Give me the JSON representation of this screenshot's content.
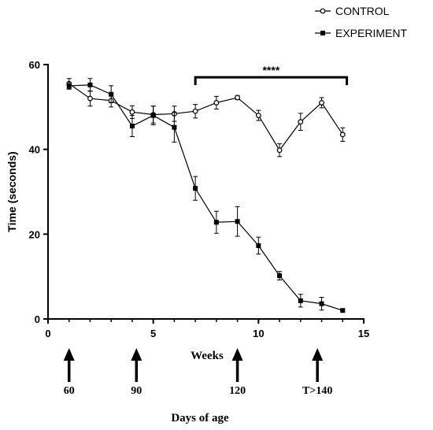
{
  "chart_data": {
    "type": "line",
    "xlabel": "Weeks",
    "ylabel": "Time (seconds)",
    "xlim": [
      0,
      15
    ],
    "ylim": [
      0,
      60
    ],
    "x_ticks": [
      0,
      5,
      10,
      15
    ],
    "y_ticks": [
      0,
      20,
      40,
      60
    ],
    "grid": false,
    "legend_position": "top-right",
    "series": [
      {
        "name": "CONTROL",
        "marker": "open-circle",
        "color": "#000000",
        "x": [
          1,
          2,
          3,
          4,
          5,
          6,
          7,
          8,
          9,
          10,
          11,
          12,
          13,
          14
        ],
        "y": [
          55.5,
          52.0,
          51.5,
          48.8,
          48.2,
          48.4,
          49.0,
          51.0,
          52.2,
          48.0,
          39.8,
          46.5,
          51.0,
          43.5
        ],
        "err": [
          1.2,
          1.8,
          1.5,
          1.5,
          2.0,
          1.8,
          1.6,
          1.5,
          0.5,
          1.2,
          1.5,
          2.0,
          1.2,
          1.6
        ]
      },
      {
        "name": "EXPERIMENT",
        "marker": "filled-square",
        "color": "#000000",
        "x": [
          1,
          2,
          3,
          4,
          5,
          6,
          7,
          8,
          9,
          10,
          11,
          12,
          13,
          14
        ],
        "y": [
          55.0,
          55.2,
          53.0,
          45.5,
          48.0,
          45.2,
          30.8,
          22.8,
          23.0,
          17.3,
          10.2,
          4.3,
          3.6,
          2.0
        ],
        "err": [
          0.8,
          1.5,
          2.0,
          2.5,
          2.2,
          3.5,
          2.8,
          2.6,
          3.5,
          2.0,
          1.0,
          1.5,
          1.5,
          0.3
        ]
      }
    ],
    "significance": {
      "label": "****",
      "x_start": 7,
      "x_end": 14.2,
      "y": 57
    },
    "age_markers": {
      "title": "Days of age",
      "items": [
        {
          "label": "60",
          "week": 1
        },
        {
          "label": "90",
          "week": 4.2
        },
        {
          "label": "120",
          "week": 9
        },
        {
          "label": "T>140",
          "week": 12.8
        }
      ]
    }
  }
}
